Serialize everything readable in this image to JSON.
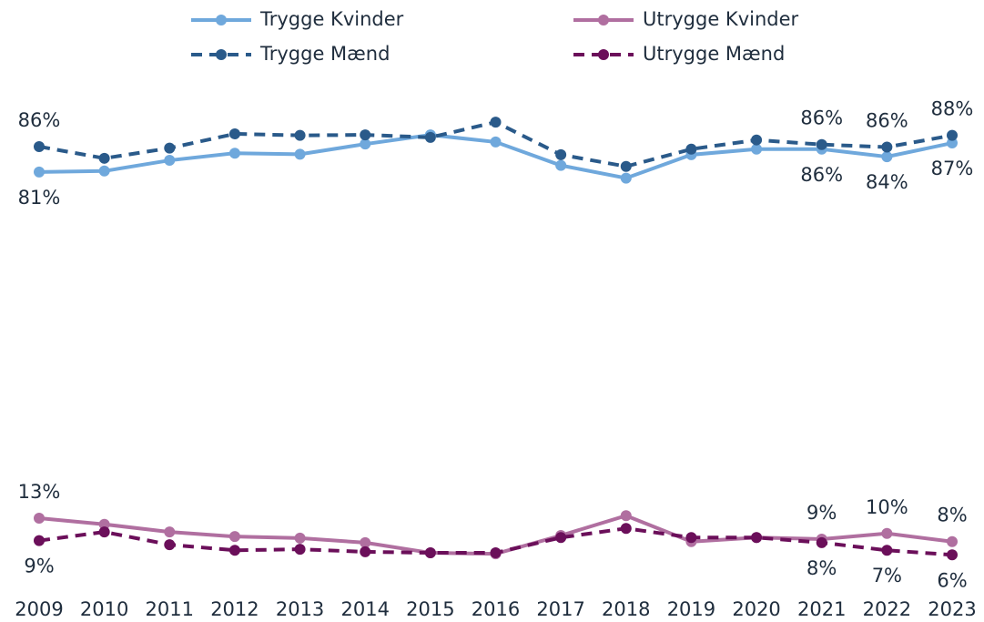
{
  "chart_data": {
    "type": "line",
    "categories": [
      "2009",
      "2010",
      "2011",
      "2012",
      "2013",
      "2014",
      "2015",
      "2016",
      "2017",
      "2018",
      "2019",
      "2020",
      "2021",
      "2022",
      "2023"
    ],
    "ylim": [
      0,
      100
    ],
    "legend": "top",
    "series": [
      {
        "name": "Trygge Kvinder",
        "color": "#6fa8dc",
        "line_style": "solid",
        "values": [
          81.0,
          81.2,
          83.3,
          84.7,
          84.5,
          86.5,
          88.3,
          86.9,
          82.3,
          79.8,
          84.4,
          85.5,
          85.5,
          84.0,
          86.7
        ],
        "value_labels": [
          "81%",
          null,
          null,
          null,
          null,
          null,
          null,
          null,
          null,
          null,
          null,
          null,
          "86%",
          "84%",
          "87%"
        ]
      },
      {
        "name": "Utrygge Kvinder",
        "color": "#b06fa0",
        "line_style": "solid",
        "values": [
          13.0,
          11.8,
          10.3,
          9.4,
          9.1,
          8.2,
          6.2,
          6.0,
          9.6,
          13.5,
          8.4,
          9.2,
          8.9,
          10.0,
          8.4
        ],
        "value_labels": [
          "13%",
          null,
          null,
          null,
          null,
          null,
          null,
          null,
          null,
          null,
          null,
          null,
          "9%",
          "10%",
          "8%"
        ]
      },
      {
        "name": "Trygge Mænd",
        "color": "#2a5a8a",
        "line_style": "dashed",
        "values": [
          86.0,
          83.7,
          85.7,
          88.5,
          88.2,
          88.3,
          87.8,
          90.8,
          84.4,
          82.1,
          85.5,
          87.3,
          86.4,
          85.9,
          88.2
        ],
        "value_labels": [
          "86%",
          null,
          null,
          null,
          null,
          null,
          null,
          null,
          null,
          null,
          null,
          null,
          "86%",
          "86%",
          "88%"
        ]
      },
      {
        "name": "Utrygge Mænd",
        "color": "#6b0f5a",
        "line_style": "dashed",
        "values": [
          8.6,
          10.3,
          7.8,
          6.7,
          6.9,
          6.4,
          6.2,
          6.2,
          9.2,
          11.0,
          9.2,
          9.2,
          8.2,
          6.7,
          5.8
        ],
        "value_labels": [
          "9%",
          null,
          null,
          null,
          null,
          null,
          null,
          null,
          null,
          null,
          null,
          null,
          "8%",
          "7%",
          "6%"
        ]
      }
    ]
  }
}
